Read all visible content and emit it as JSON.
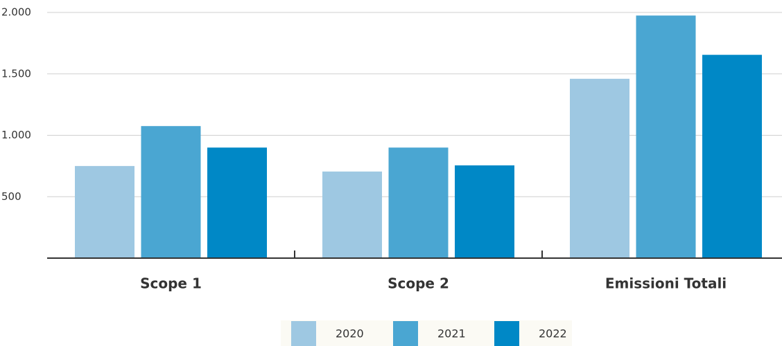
{
  "chart_data": {
    "type": "bar",
    "categories": [
      "Scope 1",
      "Scope 2",
      "Emissioni Totali"
    ],
    "series": [
      {
        "name": "2020",
        "color": "#9ec8e2",
        "values": [
          750,
          705,
          1460
        ]
      },
      {
        "name": "2021",
        "color": "#4aa6d2",
        "values": [
          1075,
          900,
          1975
        ]
      },
      {
        "name": "2022",
        "color": "#0088c6",
        "values": [
          900,
          755,
          1655
        ]
      }
    ],
    "ylim": [
      0,
      2000
    ],
    "yticks": [
      500,
      {
        "value": 1000,
        "label": "1.000"
      },
      {
        "value": 1500,
        "label": "1.500"
      },
      {
        "value": 2000,
        "label": "2.000"
      }
    ],
    "grid": true,
    "legend": "bottom"
  }
}
